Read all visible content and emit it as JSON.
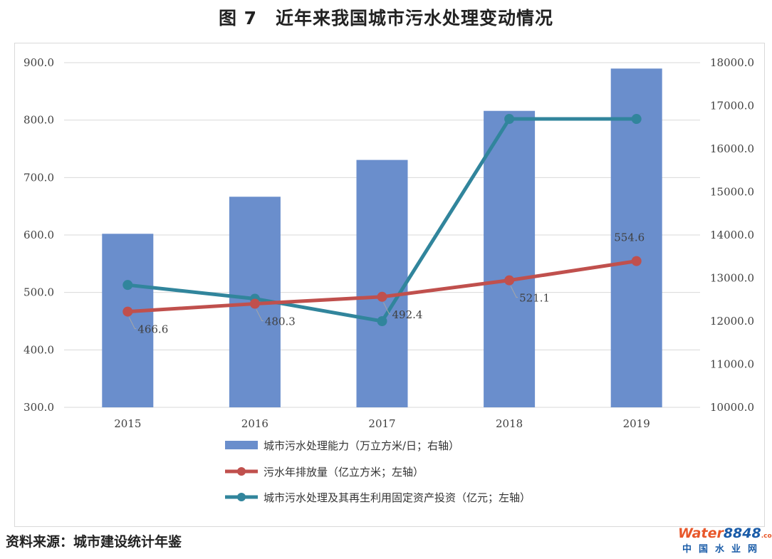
{
  "title": "图 7　近年来我国城市污水处理变动情况",
  "source": "资料来源：城市建设统计年鉴",
  "logo": {
    "part1": "Water",
    "part2": "8848",
    "part3": ".com",
    "tagline": "中国水业网"
  },
  "colors": {
    "bar": "#6a8ecc",
    "line_red": "#c0504d",
    "line_teal": "#31859c",
    "grid": "#d9d9d9"
  },
  "chart_data": {
    "type": "bar",
    "categories": [
      "2015",
      "2016",
      "2017",
      "2018",
      "2019"
    ],
    "y_left": {
      "ylim": [
        300,
        900
      ],
      "ticks": [
        "900.0",
        "800.0",
        "700.0",
        "600.0",
        "500.0",
        "400.0",
        "300.0"
      ]
    },
    "y_right": {
      "ylim": [
        10000,
        18000
      ],
      "ticks": [
        "18000.0",
        "17000.0",
        "16000.0",
        "15000.0",
        "14000.0",
        "13000.0",
        "12000.0",
        "11000.0",
        "10000.0"
      ]
    },
    "series": [
      {
        "name": "城市污水处理能力（万立方米/日；右轴）",
        "type": "bar",
        "axis": "right",
        "values": [
          14028,
          14888,
          15742,
          16881,
          17863
        ]
      },
      {
        "name": "污水年排放量（亿立方米；左轴）",
        "type": "line",
        "axis": "left",
        "values": [
          466.6,
          480.3,
          492.4,
          521.1,
          554.6
        ],
        "labels": [
          "466.6",
          "480.3",
          "492.4",
          "521.1",
          "554.6"
        ]
      },
      {
        "name": "城市污水处理及其再生利用固定资产投资（亿元；左轴）",
        "type": "line",
        "axis": "left",
        "values": [
          513,
          489,
          450,
          802,
          802
        ]
      }
    ],
    "grid": true,
    "legend_position": "bottom"
  }
}
